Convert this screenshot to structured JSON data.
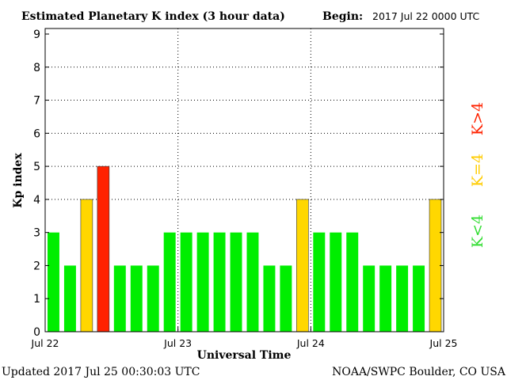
{
  "chart_data": {
    "type": "bar",
    "title": "Estimated Planetary K index (3 hour data)",
    "begin_label": "Begin:",
    "begin_value": "2017 Jul 22 0000 UTC",
    "xlabel": "Universal Time",
    "ylabel": "Kp index",
    "ylim": [
      0,
      9
    ],
    "yticks": [
      "0",
      "1",
      "2",
      "3",
      "4",
      "5",
      "6",
      "7",
      "8",
      "9"
    ],
    "xticks": [
      "Jul 22",
      "Jul 23",
      "Jul 24",
      "Jul 25"
    ],
    "values": [
      3,
      2,
      4,
      5,
      2,
      2,
      2,
      3,
      3,
      3,
      3,
      3,
      3,
      2,
      2,
      4,
      3,
      3,
      3,
      2,
      2,
      2,
      2,
      4
    ],
    "colors": {
      "below_4": "#00ee00",
      "equal_4": "#ffd700",
      "above_4": "#ff2200"
    },
    "legend": [
      "K<4",
      "K=4",
      "K>4"
    ],
    "grid": "dotted, at Kp 4 to 8 and at day boundaries"
  },
  "footer": {
    "updated": "Updated 2017 Jul 25 00:30:03 UTC",
    "source": "NOAA/SWPC Boulder, CO USA"
  }
}
